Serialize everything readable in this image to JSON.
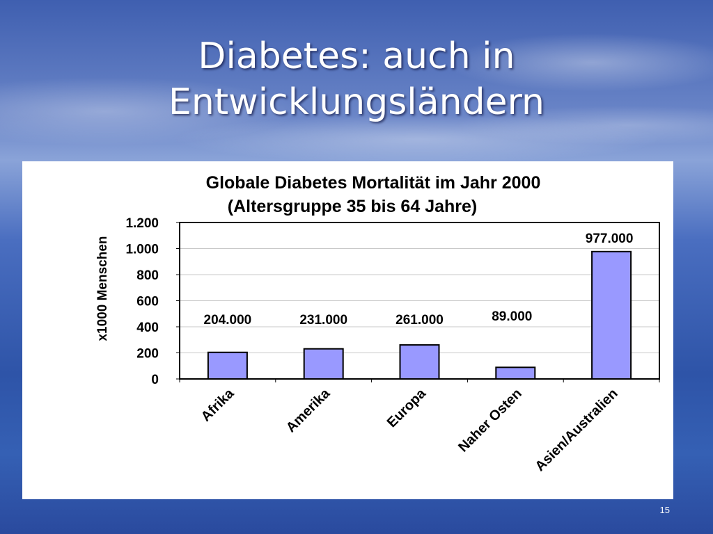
{
  "slide": {
    "title_line1": "Diabetes: auch in",
    "title_line2": "Entwicklungsländern",
    "page_number": "15"
  },
  "chart_data": {
    "type": "bar",
    "title": "Globale Diabetes Mortalität im Jahr 2000",
    "subtitle": "(Altersgruppe 35 bis 64 Jahre)",
    "xlabel": "",
    "ylabel": "x1000 Menschen",
    "categories": [
      "Afrika",
      "Amerika",
      "Europa",
      "Naher Osten",
      "Asien/Australien"
    ],
    "values": [
      204,
      231,
      261,
      89,
      977
    ],
    "data_labels": [
      "204.000",
      "231.000",
      "261.000",
      "89.000",
      "977.000"
    ],
    "ylim": [
      0,
      1200
    ],
    "yticks": [
      0,
      200,
      400,
      600,
      800,
      1000,
      1200
    ],
    "ytick_labels": [
      "0",
      "200",
      "400",
      "600",
      "800",
      "1.000",
      "1.200"
    ],
    "grid": true,
    "legend": "none",
    "bar_color": "#9999ff"
  }
}
